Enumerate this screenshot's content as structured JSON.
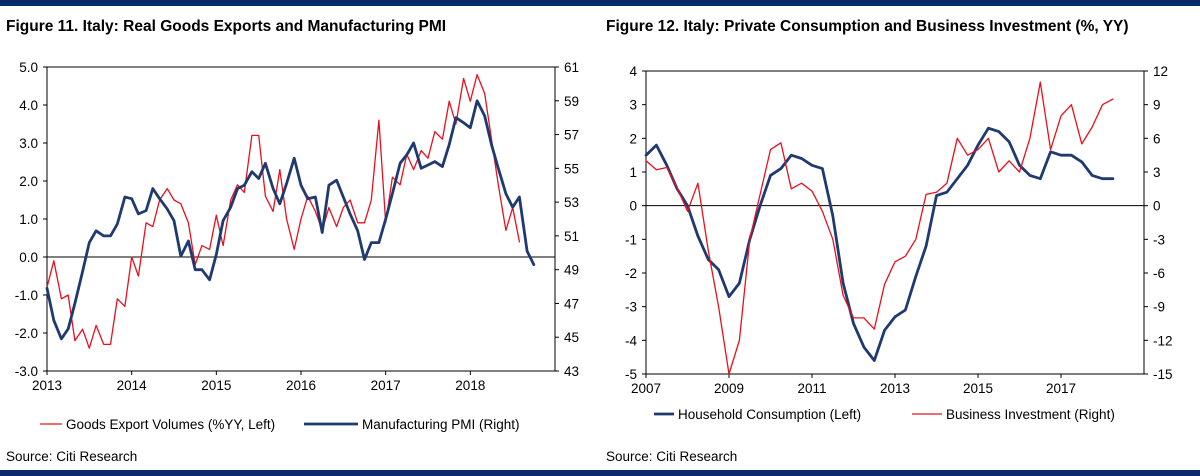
{
  "chart_data": [
    {
      "type": "line",
      "title": "Figure 11. Italy: Real Goods Exports and Manufacturing PMI",
      "source": "Source: Citi Research",
      "x_ticks": [
        "2013",
        "2014",
        "2015",
        "2016",
        "2017",
        "2018"
      ],
      "left_ticks": [
        "5.0",
        "4.0",
        "3.0",
        "2.0",
        "1.0",
        "0.0",
        "-1.0",
        "-2.0",
        "-3.0"
      ],
      "right_ticks": [
        "61",
        "59",
        "57",
        "55",
        "53",
        "51",
        "49",
        "47",
        "45",
        "43"
      ],
      "xlim": [
        2013.0,
        2019.0
      ],
      "ylim_left": [
        -3.0,
        5.0
      ],
      "ylim_right": [
        43,
        61
      ],
      "legend_position": "bottom",
      "colors": {
        "left_series": "#e8101e",
        "right_series": "#1f3a70"
      },
      "series": [
        {
          "name": "Goods Export Volumes (%YY, Left)",
          "axis": "left",
          "x": [
            2013.0,
            2013.08,
            2013.17,
            2013.25,
            2013.33,
            2013.42,
            2013.5,
            2013.58,
            2013.67,
            2013.75,
            2013.83,
            2013.92,
            2014.0,
            2014.08,
            2014.17,
            2014.25,
            2014.33,
            2014.42,
            2014.5,
            2014.58,
            2014.67,
            2014.75,
            2014.83,
            2014.92,
            2015.0,
            2015.08,
            2015.17,
            2015.25,
            2015.33,
            2015.42,
            2015.5,
            2015.58,
            2015.67,
            2015.75,
            2015.83,
            2015.92,
            2016.0,
            2016.08,
            2016.17,
            2016.25,
            2016.33,
            2016.42,
            2016.5,
            2016.58,
            2016.67,
            2016.75,
            2016.83,
            2016.92,
            2017.0,
            2017.08,
            2017.17,
            2017.25,
            2017.33,
            2017.42,
            2017.5,
            2017.58,
            2017.67,
            2017.75,
            2017.83,
            2017.92,
            2018.0,
            2018.08,
            2018.17,
            2018.25,
            2018.33,
            2018.42,
            2018.5,
            2018.58
          ],
          "y": [
            -0.8,
            -0.1,
            -1.1,
            -1.0,
            -2.2,
            -1.9,
            -2.4,
            -1.8,
            -2.3,
            -2.3,
            -1.1,
            -1.3,
            0.0,
            -0.5,
            0.9,
            0.8,
            1.5,
            1.8,
            1.5,
            1.4,
            0.9,
            -0.2,
            0.3,
            0.2,
            1.1,
            0.3,
            1.5,
            1.9,
            1.7,
            3.2,
            3.2,
            1.6,
            1.2,
            2.3,
            1.0,
            0.2,
            1.0,
            1.6,
            1.2,
            0.7,
            1.3,
            0.8,
            1.3,
            1.5,
            0.9,
            0.9,
            1.5,
            3.6,
            0.9,
            2.1,
            1.9,
            2.7,
            2.3,
            2.8,
            2.6,
            3.3,
            3.1,
            4.1,
            3.5,
            4.7,
            4.1,
            4.8,
            4.3,
            3.1,
            1.9,
            0.7,
            1.3,
            0.4
          ]
        },
        {
          "name": "Manufacturing PMI (Right)",
          "axis": "right",
          "x": [
            2013.0,
            2013.08,
            2013.17,
            2013.25,
            2013.33,
            2013.42,
            2013.5,
            2013.58,
            2013.67,
            2013.75,
            2013.83,
            2013.92,
            2014.0,
            2014.08,
            2014.17,
            2014.25,
            2014.33,
            2014.42,
            2014.5,
            2014.58,
            2014.67,
            2014.75,
            2014.83,
            2014.92,
            2015.0,
            2015.08,
            2015.17,
            2015.25,
            2015.33,
            2015.42,
            2015.5,
            2015.58,
            2015.67,
            2015.75,
            2015.83,
            2015.92,
            2016.0,
            2016.08,
            2016.17,
            2016.25,
            2016.33,
            2016.42,
            2016.5,
            2016.58,
            2016.67,
            2016.75,
            2016.83,
            2016.92,
            2017.0,
            2017.08,
            2017.17,
            2017.25,
            2017.33,
            2017.42,
            2017.5,
            2017.58,
            2017.67,
            2017.75,
            2017.83,
            2017.92,
            2018.0,
            2018.08,
            2018.17,
            2018.25,
            2018.33,
            2018.42,
            2018.5,
            2018.58,
            2018.67,
            2018.75
          ],
          "y": [
            47.9,
            46.0,
            44.9,
            45.5,
            47.0,
            48.9,
            50.6,
            51.3,
            51.0,
            51.0,
            51.7,
            53.3,
            53.2,
            52.3,
            52.5,
            53.8,
            53.2,
            52.6,
            51.9,
            49.8,
            50.7,
            49.0,
            49.0,
            48.4,
            49.9,
            51.9,
            52.7,
            53.8,
            54.0,
            54.8,
            54.4,
            55.3,
            53.8,
            52.9,
            54.1,
            55.6,
            54.0,
            53.2,
            53.3,
            51.2,
            54.0,
            54.3,
            53.3,
            52.3,
            51.3,
            49.6,
            50.6,
            50.6,
            52.0,
            53.5,
            55.3,
            55.8,
            56.5,
            55.0,
            55.2,
            55.4,
            55.1,
            56.4,
            58.0,
            57.7,
            57.4,
            59.0,
            58.1,
            56.4,
            55.0,
            53.5,
            52.7,
            53.3,
            50.1,
            49.3
          ]
        }
      ]
    },
    {
      "type": "line",
      "title": "Figure 12. Italy: Private Consumption and Business Investment (%, YY)",
      "source": "Source: Citi Research",
      "x_ticks": [
        "2007",
        "2009",
        "2011",
        "2013",
        "2015",
        "2017"
      ],
      "left_ticks": [
        "4",
        "3",
        "2",
        "1",
        "0",
        "-1",
        "-2",
        "-3",
        "-4",
        "-5"
      ],
      "right_ticks": [
        "12",
        "9",
        "6",
        "3",
        "0",
        "-3",
        "-6",
        "-9",
        "-12",
        "-15"
      ],
      "xlim": [
        2007.0,
        2019.0
      ],
      "ylim_left": [
        -5,
        4
      ],
      "ylim_right": [
        -15,
        12
      ],
      "legend_position": "bottom",
      "colors": {
        "left_series": "#1f3a70",
        "right_series": "#e8101e"
      },
      "series": [
        {
          "name": "Household Consumption (Left)",
          "axis": "left",
          "x": [
            2007.0,
            2007.25,
            2007.5,
            2007.75,
            2008.0,
            2008.25,
            2008.5,
            2008.75,
            2009.0,
            2009.25,
            2009.5,
            2009.75,
            2010.0,
            2010.25,
            2010.5,
            2010.75,
            2011.0,
            2011.25,
            2011.5,
            2011.75,
            2012.0,
            2012.25,
            2012.5,
            2012.75,
            2013.0,
            2013.25,
            2013.5,
            2013.75,
            2014.0,
            2014.25,
            2014.5,
            2014.75,
            2015.0,
            2015.25,
            2015.5,
            2015.75,
            2016.0,
            2016.25,
            2016.5,
            2016.75,
            2017.0,
            2017.25,
            2017.5,
            2017.75,
            2018.0,
            2018.25
          ],
          "y": [
            1.5,
            1.8,
            1.2,
            0.5,
            0.0,
            -0.9,
            -1.6,
            -1.9,
            -2.7,
            -2.3,
            -1.0,
            0.0,
            0.9,
            1.1,
            1.5,
            1.4,
            1.2,
            1.1,
            -0.3,
            -2.3,
            -3.5,
            -4.2,
            -4.6,
            -3.7,
            -3.3,
            -3.1,
            -2.1,
            -1.2,
            0.3,
            0.4,
            0.8,
            1.2,
            1.8,
            2.3,
            2.2,
            1.9,
            1.2,
            0.9,
            0.8,
            1.6,
            1.5,
            1.5,
            1.3,
            0.9,
            0.8,
            0.8
          ]
        },
        {
          "name": "Business Investment (Right)",
          "axis": "right",
          "x": [
            2007.0,
            2007.25,
            2007.5,
            2007.75,
            2008.0,
            2008.25,
            2008.5,
            2008.75,
            2009.0,
            2009.25,
            2009.5,
            2009.75,
            2010.0,
            2010.25,
            2010.5,
            2010.75,
            2011.0,
            2011.25,
            2011.5,
            2011.75,
            2012.0,
            2012.25,
            2012.5,
            2012.75,
            2013.0,
            2013.25,
            2013.5,
            2013.75,
            2014.0,
            2014.25,
            2014.5,
            2014.75,
            2015.0,
            2015.25,
            2015.5,
            2015.75,
            2016.0,
            2016.25,
            2016.5,
            2016.75,
            2017.0,
            2017.25,
            2017.5,
            2017.75,
            2018.0,
            2018.25
          ],
          "y": [
            4.0,
            3.2,
            3.4,
            1.6,
            -0.5,
            2.0,
            -4.0,
            -9.0,
            -15.0,
            -12.0,
            -3.0,
            1.0,
            5.0,
            5.6,
            1.5,
            2.0,
            1.3,
            -0.5,
            -3.0,
            -8.0,
            -10.0,
            -10.0,
            -11.0,
            -7.0,
            -5.0,
            -4.5,
            -3.0,
            1.0,
            1.2,
            2.0,
            6.0,
            4.5,
            5.0,
            6.0,
            3.0,
            4.0,
            3.0,
            6.0,
            11.0,
            5.0,
            8.0,
            9.0,
            5.5,
            7.0,
            9.0,
            9.5
          ]
        }
      ]
    }
  ]
}
